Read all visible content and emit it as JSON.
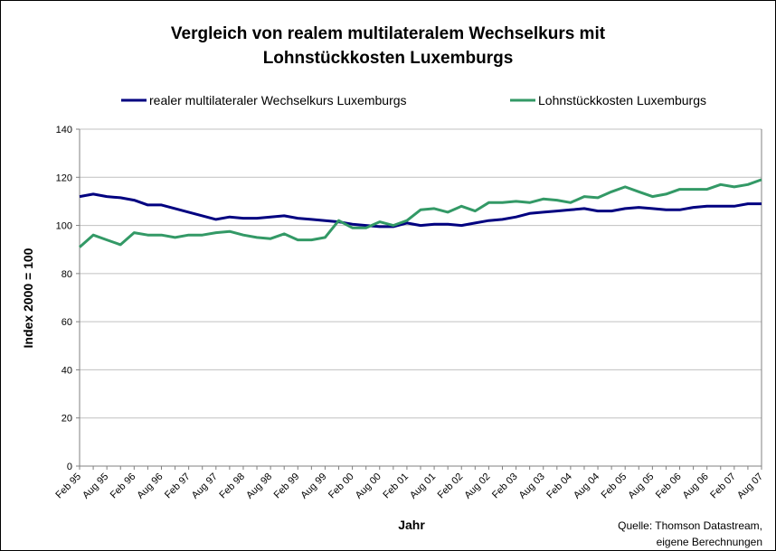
{
  "chart_data": {
    "type": "line",
    "title": [
      "Vergleich von realem multilateralem Wechselkurs mit",
      "Lohnstückkosten Luxemburgs"
    ],
    "xlabel": "Jahr",
    "ylabel": "Index 2000 = 100",
    "ylim": [
      0,
      140
    ],
    "yticks": [
      0,
      20,
      40,
      60,
      80,
      100,
      120,
      140
    ],
    "grid": true,
    "legend_position": "top",
    "source": [
      "Quelle: Thomson Datastream,",
      "eigene Berechnungen"
    ],
    "x_tick_labels": [
      "Feb 95",
      "Aug 95",
      "Feb 96",
      "Aug 96",
      "Feb 97",
      "Aug 97",
      "Feb 98",
      "Aug 98",
      "Feb 99",
      "Aug 99",
      "Feb 00",
      "Aug 00",
      "Feb 01",
      "Aug 01",
      "Feb 02",
      "Aug 02",
      "Feb 03",
      "Aug 03",
      "Feb 04",
      "Aug 04",
      "Feb 05",
      "Aug 05",
      "Feb 06",
      "Aug 06",
      "Feb 07",
      "Aug 07"
    ],
    "series": [
      {
        "name": "realer multilateraler Wechselkurs Luxemburgs",
        "color": "#000080",
        "values": [
          112,
          113,
          112,
          111.5,
          110.5,
          108.5,
          108.5,
          107,
          105.5,
          104,
          102.5,
          103.5,
          103,
          103,
          103.5,
          104,
          103,
          102.5,
          102,
          101.5,
          100.5,
          100,
          99.5,
          99.5,
          101,
          100,
          100.5,
          100.5,
          100,
          101,
          102,
          102.5,
          103.5,
          105,
          105.5,
          106,
          106.5,
          107,
          106,
          106,
          107,
          107.5,
          107,
          106.5,
          106.5,
          107.5,
          108,
          108,
          108,
          109,
          109
        ]
      },
      {
        "name": "Lohnstückkosten Luxemburgs",
        "color": "#339966",
        "values": [
          91,
          96,
          94,
          92,
          97,
          96,
          96,
          95,
          96,
          96,
          97,
          97.5,
          96,
          95,
          94.5,
          96.5,
          94,
          94,
          95,
          102,
          99,
          99,
          101.5,
          100,
          102,
          106.5,
          107,
          105.5,
          108,
          106,
          109.5,
          109.5,
          110,
          109.5,
          111,
          110.5,
          109.5,
          112,
          111.5,
          114,
          116,
          114,
          112,
          113,
          115,
          115,
          115,
          117,
          116,
          117,
          119
        ]
      }
    ]
  }
}
